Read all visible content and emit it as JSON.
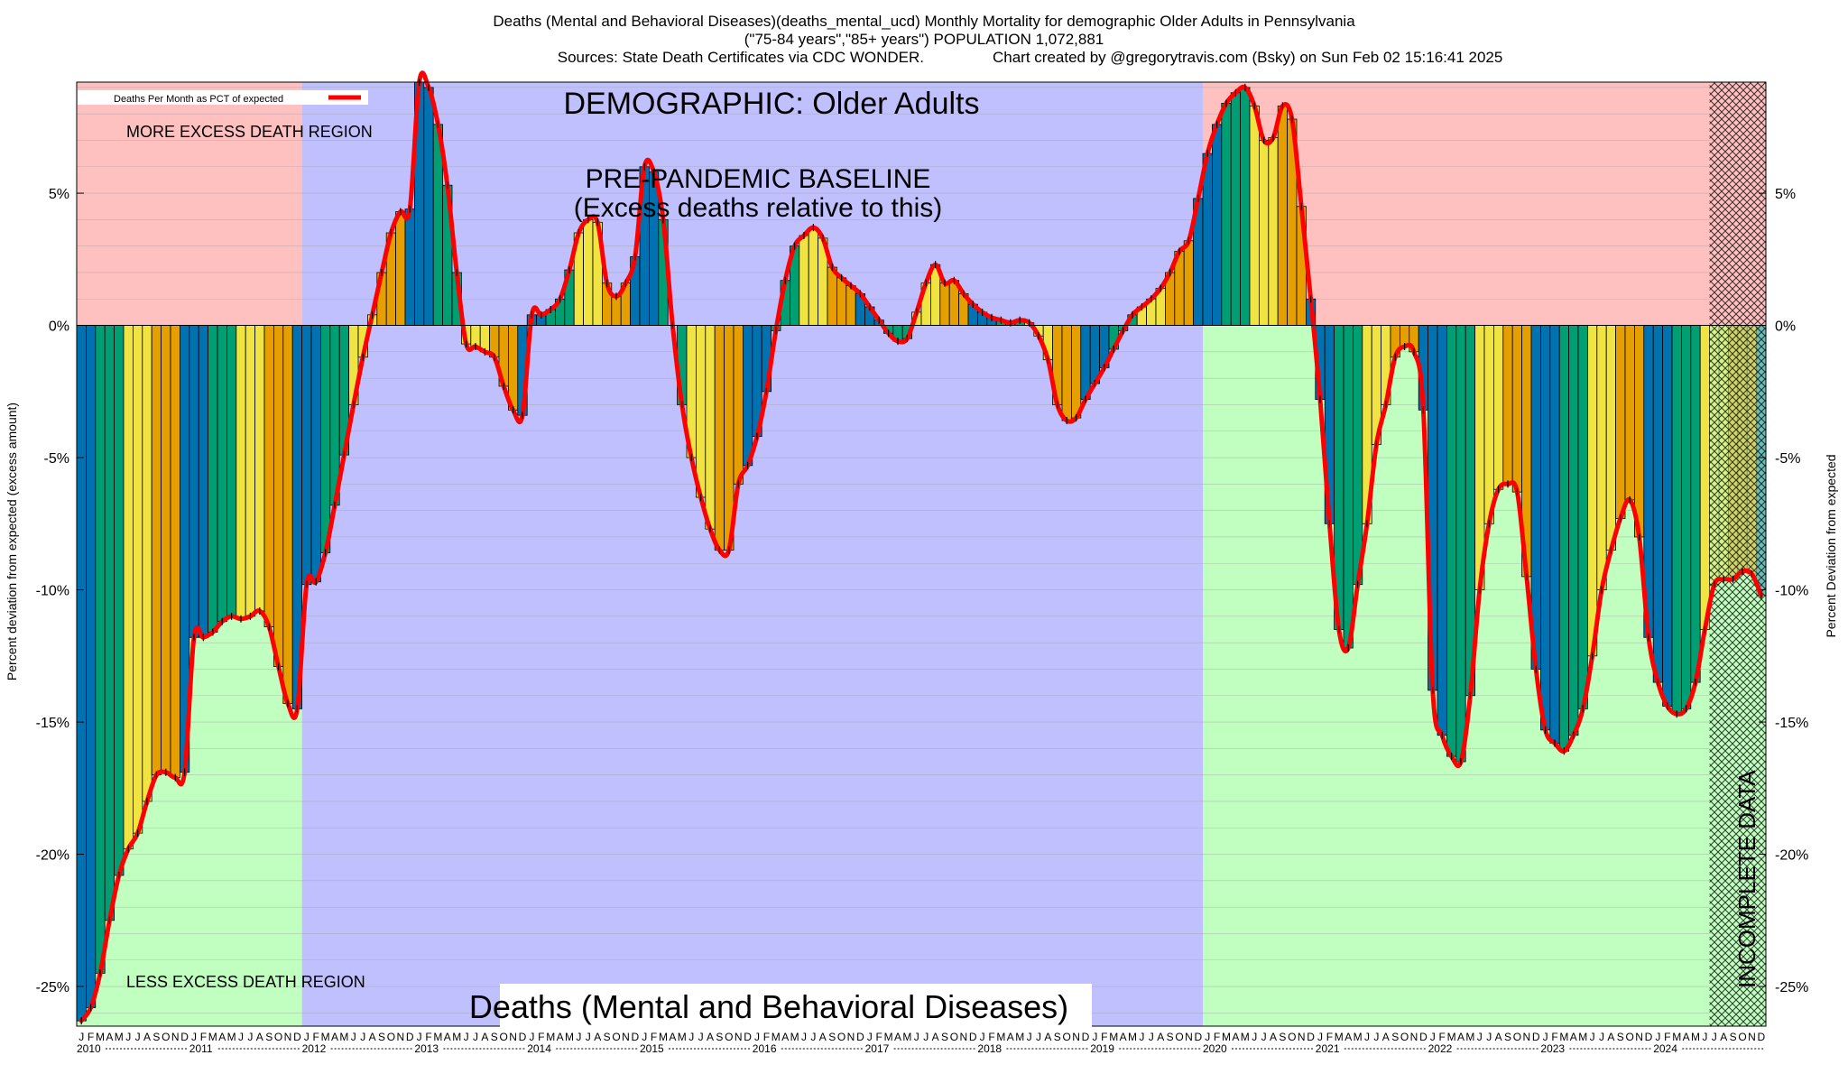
{
  "titles": {
    "line1": "Deaths (Mental and Behavioral Diseases)(deaths_mental_ucd) Monthly Mortality for demographic Older Adults in Pennsylvania",
    "line2": "(\"75-84 years\",\"85+ years\") POPULATION 1,072,881",
    "line3_left": "Sources: State Death Certificates via CDC WONDER.",
    "line3_right": "Chart created by @gregorytravis.com (Bsky) on Sun Feb 02 15:16:41 2025"
  },
  "labels": {
    "demographic": "DEMOGRAPHIC: Older Adults",
    "baseline_1": "PRE-PANDEMIC BASELINE",
    "baseline_2": "(Excess deaths relative to this)",
    "more_region": "MORE EXCESS DEATH REGION",
    "less_region": "LESS EXCESS DEATH REGION",
    "incomplete": "INCOMPLETE DATA",
    "bottom_title": "Deaths (Mental and Behavioral Diseases)",
    "legend": "Deaths Per Month as PCT of expected",
    "ylabel_left": "Percent deviation from expected (excess amount)",
    "ylabel_right": "Percent Deviation from expected"
  },
  "colors": {
    "more_region": "#ffc0c0",
    "less_region": "#c0ffc0",
    "baseline_region": "#c0c0ff",
    "line": "#ff0000",
    "bar_winter": "#0072b2",
    "bar_spring": "#009e73",
    "bar_summer": "#f0e442",
    "bar_fall": "#e69f00",
    "incomplete_hatch": "#000000"
  },
  "chart_data": {
    "type": "bar",
    "title": "Deaths (Mental and Behavioral Diseases)(deaths_mental_ucd) Monthly Mortality for demographic Older Adults in Pennsylvania",
    "xlabel": "",
    "ylabel": "Percent deviation from expected (excess amount)",
    "ylim": [
      -26.5,
      9.2
    ],
    "y_ticks": [
      5,
      0,
      -5,
      -10,
      -15,
      -20,
      -25
    ],
    "y_tick_labels": [
      "5%",
      "0%",
      "-5%",
      "-10%",
      "-15%",
      "-20%",
      "-25%"
    ],
    "years": [
      "2010",
      "2011",
      "2012",
      "2013",
      "2014",
      "2015",
      "2016",
      "2017",
      "2018",
      "2019",
      "2020",
      "2021",
      "2022",
      "2023",
      "2024"
    ],
    "month_letters": [
      "J",
      "F",
      "M",
      "A",
      "M",
      "J",
      "J",
      "A",
      "S",
      "O",
      "N",
      "D"
    ],
    "start": "2010-01",
    "end": "2024-12",
    "baseline_period": [
      "2012-01",
      "2019-12"
    ],
    "incomplete_from": "2024-07",
    "grid": true,
    "legend_position": "top-left",
    "series": [
      {
        "name": "Deaths Per Month as PCT of expected",
        "values": [
          -26.3,
          -25.8,
          -24.5,
          -22.5,
          -20.8,
          -19.8,
          -19.2,
          -18.0,
          -17.0,
          -16.9,
          -17.1,
          -16.9,
          -11.8,
          -11.8,
          -11.6,
          -11.2,
          -11.0,
          -11.1,
          -11.0,
          -10.8,
          -11.4,
          -12.9,
          -14.3,
          -14.5,
          -9.8,
          -9.7,
          -8.6,
          -6.8,
          -4.9,
          -3.0,
          -1.2,
          0.4,
          2.0,
          3.5,
          4.3,
          4.4,
          9.2,
          9.0,
          7.6,
          5.3,
          2.0,
          -0.7,
          -0.8,
          -1.0,
          -1.2,
          -2.3,
          -3.2,
          -3.4,
          0.4,
          0.4,
          0.6,
          1.0,
          2.1,
          3.5,
          4.0,
          3.9,
          1.6,
          1.1,
          1.6,
          2.6,
          6.0,
          5.8,
          4.0,
          0.0,
          -3.0,
          -5.0,
          -6.5,
          -7.7,
          -8.5,
          -8.5,
          -6.0,
          -5.3,
          -4.2,
          -2.5,
          -0.2,
          1.7,
          3.0,
          3.4,
          3.7,
          3.3,
          2.2,
          1.8,
          1.5,
          1.2,
          0.7,
          0.2,
          -0.3,
          -0.6,
          -0.5,
          0.5,
          1.6,
          2.3,
          1.6,
          1.7,
          1.2,
          0.8,
          0.5,
          0.3,
          0.2,
          0.1,
          0.2,
          0.1,
          -0.4,
          -1.3,
          -3.0,
          -3.6,
          -3.5,
          -2.8,
          -2.2,
          -1.6,
          -0.9,
          -0.2,
          0.4,
          0.7,
          1.0,
          1.4,
          2.0,
          2.8,
          3.2,
          4.8,
          6.5,
          7.6,
          8.4,
          8.8,
          9.0,
          8.3,
          7.0,
          7.1,
          8.3,
          7.8,
          4.5,
          1.0,
          -2.8,
          -7.5,
          -11.5,
          -12.2,
          -9.8,
          -7.5,
          -4.5,
          -3.0,
          -1.2,
          -0.8,
          -1.0,
          -3.2,
          -13.8,
          -15.5,
          -16.3,
          -16.5,
          -14.0,
          -10.0,
          -7.5,
          -6.2,
          -6.0,
          -6.3,
          -9.5,
          -13.0,
          -15.3,
          -15.8,
          -16.1,
          -15.5,
          -14.5,
          -12.5,
          -10.0,
          -8.5,
          -7.3,
          -6.6,
          -8.0,
          -11.8,
          -13.5,
          -14.4,
          -14.7,
          -14.5,
          -13.5,
          -11.5,
          -9.8,
          -9.6,
          -9.6,
          -9.3,
          -9.4,
          -10.2
        ]
      }
    ]
  }
}
